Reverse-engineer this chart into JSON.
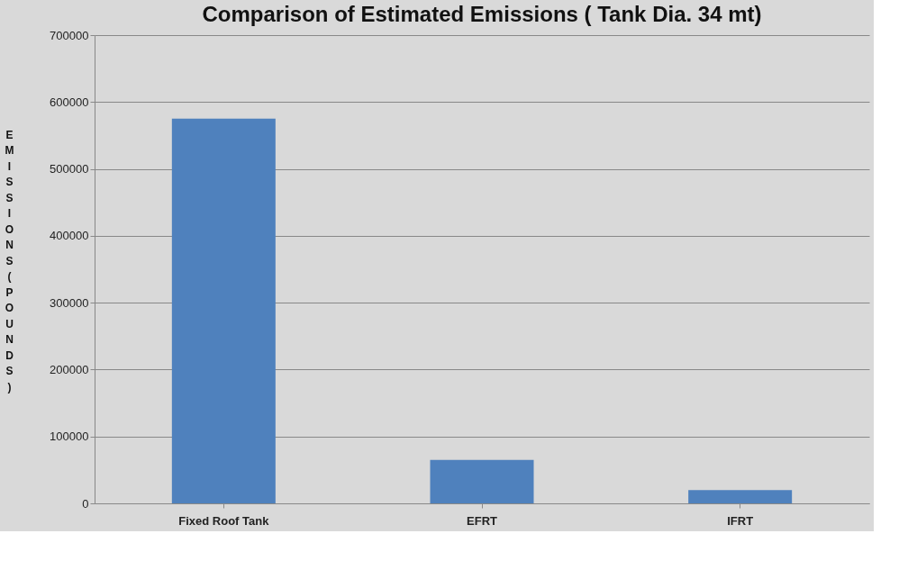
{
  "chart_data": {
    "type": "bar",
    "title": "Comparison of Estimated Emissions ( Tank Dia. 34 mt)",
    "ylabel": "EMISSIONS (POUNDS)",
    "categories": [
      "Fixed Roof Tank",
      "EFRT",
      "IFRT"
    ],
    "values": [
      575000,
      65000,
      20000
    ],
    "color": "#4f81bd",
    "ylim": [
      0,
      700000
    ],
    "yticks": [
      0,
      100000,
      200000,
      300000,
      400000,
      500000,
      600000,
      700000
    ],
    "grid": "y"
  }
}
